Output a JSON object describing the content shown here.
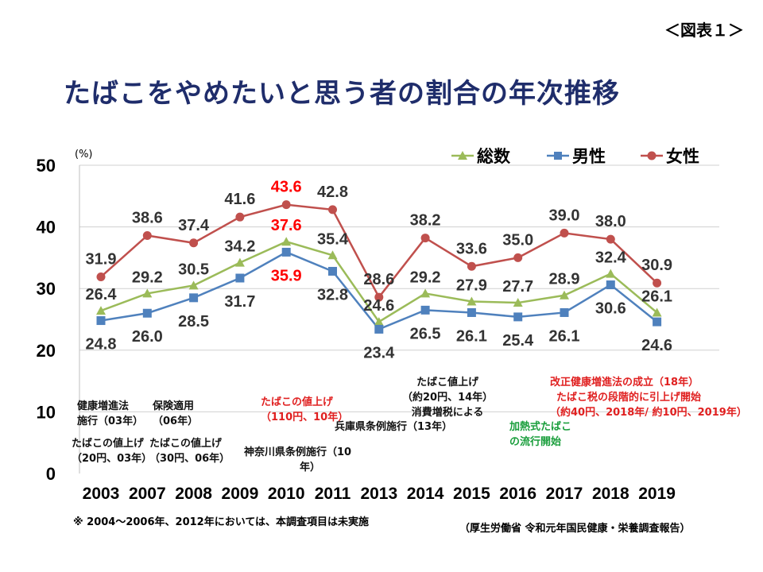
{
  "figure_label": "＜図表１＞",
  "title": "たばこをやめたいと思う者の割合の年次推移",
  "footnote": "※ 2004～2006年、2012年においては、本調査項目は未実施",
  "source": "（厚生労働省 令和元年国民健康・栄養調査報告）",
  "colors": {
    "total": "#9bbb59",
    "male": "#4f81bd",
    "female": "#c0504d",
    "highlight": "#ff0000"
  },
  "chart_data": {
    "type": "line",
    "categories": [
      "2003",
      "2007",
      "2008",
      "2009",
      "2010",
      "2011",
      "2013",
      "2014",
      "2015",
      "2016",
      "2017",
      "2018",
      "2019"
    ],
    "unit_label": "(%)",
    "ylim": [
      0,
      50
    ],
    "yticks": [
      0,
      10,
      20,
      30,
      40,
      50
    ],
    "grid": true,
    "legend_position": "top-right",
    "highlight_category": "2010",
    "series": [
      {
        "name": "総数",
        "marker": "triangle",
        "values": [
          26.4,
          29.2,
          30.5,
          34.2,
          37.6,
          35.4,
          24.6,
          29.2,
          27.9,
          27.7,
          28.9,
          32.4,
          26.1
        ]
      },
      {
        "name": "男性",
        "marker": "square",
        "values": [
          24.8,
          26.0,
          28.5,
          31.7,
          35.9,
          32.8,
          23.4,
          26.5,
          26.1,
          25.4,
          26.1,
          30.6,
          24.6
        ]
      },
      {
        "name": "女性",
        "marker": "circle",
        "values": [
          31.9,
          38.6,
          37.4,
          41.6,
          43.6,
          42.8,
          28.6,
          38.2,
          33.6,
          35.0,
          39.0,
          38.0,
          30.9
        ]
      }
    ]
  },
  "annotations": [
    {
      "id": "health-promotion-law",
      "lines": [
        "健康増進法",
        "施行（03年）"
      ]
    },
    {
      "id": "insurance",
      "lines": [
        "保険適用",
        "（06年）"
      ]
    },
    {
      "id": "price-2003",
      "lines": [
        "たばこの値上げ",
        "（20円、03年）"
      ]
    },
    {
      "id": "price-2006",
      "lines": [
        "たばこの値上げ",
        "（30円、06年）"
      ]
    },
    {
      "id": "price-2010",
      "lines": [
        "たばこの値上げ",
        "（110円、10年）"
      ]
    },
    {
      "id": "kanagawa",
      "lines": [
        "神奈川県条例施行（10",
        "年）"
      ]
    },
    {
      "id": "hyogo",
      "lines": [
        "兵庫県条例施行（13年）"
      ]
    },
    {
      "id": "price-2014",
      "lines": [
        "たばこ値上げ",
        "（約20円、14年）",
        "消費増税による"
      ]
    },
    {
      "id": "heated-tobacco",
      "lines": [
        "加熱式たばこ",
        "の流行開始"
      ]
    },
    {
      "id": "revised-law",
      "lines": [
        "改正健康増進法の成立（18年）",
        "たばこ税の段階的に引上げ開始",
        "（約40円、2018年/ 約10円、2019年）"
      ]
    }
  ]
}
